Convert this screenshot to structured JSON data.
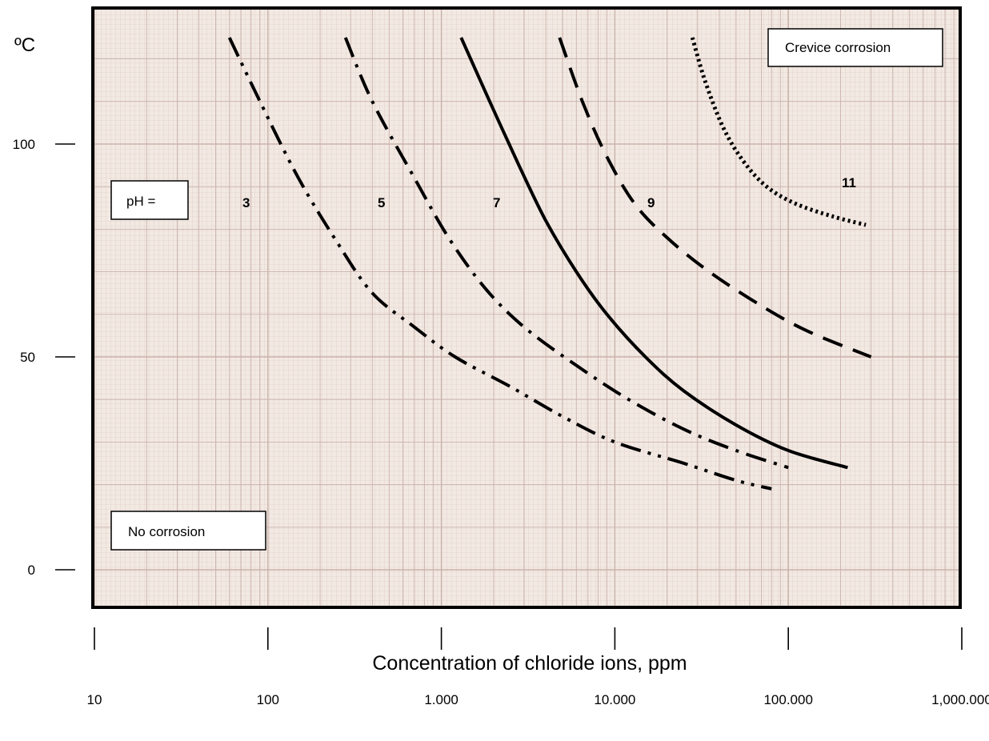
{
  "chart_data": {
    "type": "line",
    "title": "",
    "xlabel": "Concentration of chloride ions, ppm",
    "ylabel": "",
    "yunit": "ºC",
    "xscale": "log",
    "xlim": [
      10,
      1000000
    ],
    "ylim": [
      -10,
      128
    ],
    "x_ticks": [
      10,
      100,
      1000,
      10000,
      100000,
      1000000
    ],
    "x_tick_labels": [
      "10",
      "100",
      "1.000",
      "10.000",
      "100.000",
      "1,000.000"
    ],
    "y_ticks": [
      0,
      50,
      100
    ],
    "y_tick_labels": [
      "0",
      "50",
      "100"
    ],
    "grid": true,
    "background_color": "#f3e9e3",
    "grid_color": "#c9b3ab",
    "annotations": {
      "crevice": "Crevice corrosion",
      "no_corrosion": "No corrosion",
      "ph_prefix": "pH ="
    },
    "series": [
      {
        "name": "3",
        "style": "dash-dot-dot",
        "points": [
          [
            60,
            125
          ],
          [
            90,
            110
          ],
          [
            150,
            92
          ],
          [
            250,
            77
          ],
          [
            400,
            65
          ],
          [
            700,
            57
          ],
          [
            1200,
            50
          ],
          [
            2500,
            43
          ],
          [
            5000,
            36
          ],
          [
            10000,
            30
          ],
          [
            25000,
            25
          ],
          [
            50000,
            21
          ],
          [
            80000,
            19
          ]
        ]
      },
      {
        "name": "5",
        "style": "dash-dot",
        "points": [
          [
            280,
            125
          ],
          [
            400,
            110
          ],
          [
            700,
            92
          ],
          [
            1100,
            78
          ],
          [
            1800,
            66
          ],
          [
            3000,
            57
          ],
          [
            6000,
            48
          ],
          [
            12000,
            40
          ],
          [
            25000,
            33
          ],
          [
            50000,
            28
          ],
          [
            100000,
            24
          ]
        ]
      },
      {
        "name": "7",
        "style": "solid",
        "points": [
          [
            1300,
            125
          ],
          [
            1900,
            110
          ],
          [
            2800,
            95
          ],
          [
            4000,
            82
          ],
          [
            6000,
            70
          ],
          [
            9000,
            60
          ],
          [
            15000,
            50
          ],
          [
            25000,
            42
          ],
          [
            50000,
            34
          ],
          [
            100000,
            28
          ],
          [
            220000,
            24
          ]
        ]
      },
      {
        "name": "9",
        "style": "dashed",
        "points": [
          [
            4800,
            125
          ],
          [
            6500,
            110
          ],
          [
            9000,
            97
          ],
          [
            13000,
            86
          ],
          [
            20000,
            78
          ],
          [
            35000,
            70
          ],
          [
            70000,
            62
          ],
          [
            130000,
            56
          ],
          [
            300000,
            50
          ]
        ]
      },
      {
        "name": "11",
        "style": "dotted",
        "points": [
          [
            28000,
            125
          ],
          [
            33000,
            115
          ],
          [
            42000,
            104
          ],
          [
            55000,
            96
          ],
          [
            75000,
            90
          ],
          [
            110000,
            86
          ],
          [
            180000,
            83
          ],
          [
            280000,
            81
          ]
        ]
      }
    ]
  }
}
